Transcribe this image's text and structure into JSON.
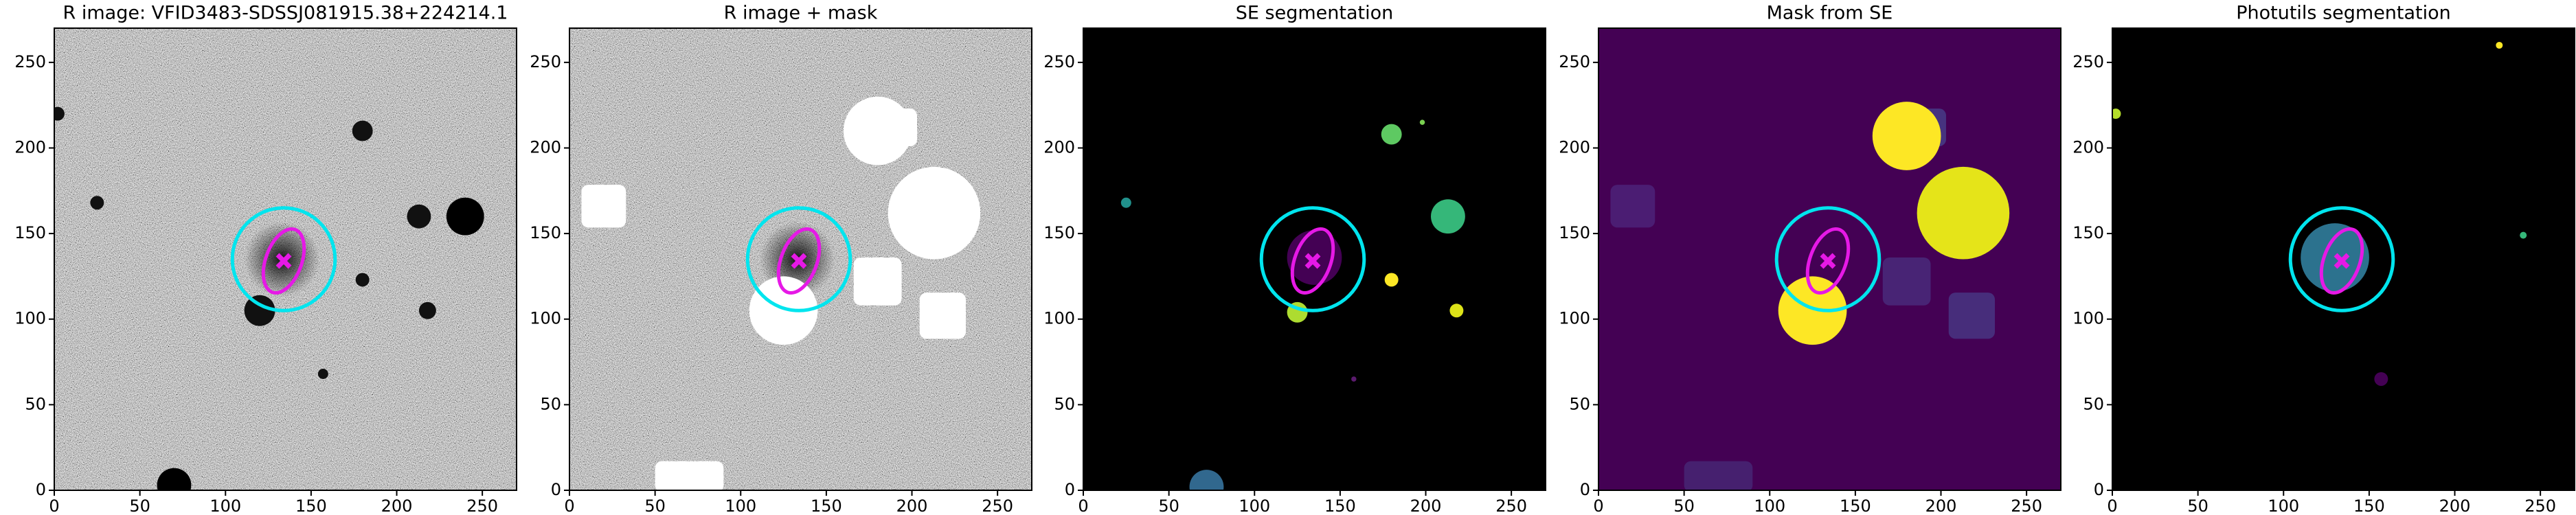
{
  "chart_data": [
    {
      "type": "image",
      "title": "R image: VFID3483-SDSSJ081915.38+224214.1",
      "background": "noise",
      "xlim": [
        0,
        270
      ],
      "ylim": [
        0,
        270
      ],
      "xticks": [
        0,
        50,
        100,
        150,
        200,
        250
      ],
      "yticks": [
        0,
        50,
        100,
        150,
        200,
        250
      ],
      "aperture": {
        "x": 134,
        "y": 135,
        "radius": 30,
        "color": "#00e5ee"
      },
      "ellipse": {
        "x": 134,
        "y": 134,
        "width": 21,
        "height": 39,
        "angle": 20,
        "color": "#e619e6"
      }
    },
    {
      "type": "image",
      "title": "R image + mask",
      "background": "noise-mask",
      "xlim": [
        0,
        270
      ],
      "ylim": [
        0,
        270
      ],
      "xticks": [
        0,
        50,
        100,
        150,
        200,
        250
      ],
      "yticks": [
        0,
        50,
        100,
        150,
        200,
        250
      ],
      "aperture": {
        "x": 134,
        "y": 135,
        "radius": 30,
        "color": "#00e5ee"
      },
      "ellipse": {
        "x": 134,
        "y": 134,
        "width": 21,
        "height": 39,
        "angle": 20,
        "color": "#e619e6"
      }
    },
    {
      "type": "image",
      "title": "SE segmentation",
      "background": "segmentation",
      "xlim": [
        0,
        270
      ],
      "ylim": [
        0,
        270
      ],
      "xticks": [
        0,
        50,
        100,
        150,
        200,
        250
      ],
      "yticks": [
        0,
        50,
        100,
        150,
        200,
        250
      ],
      "aperture": {
        "x": 134,
        "y": 135,
        "radius": 30,
        "color": "#00e5ee"
      },
      "ellipse": {
        "x": 134,
        "y": 134,
        "width": 21,
        "height": 39,
        "angle": 20,
        "color": "#e619e6"
      }
    },
    {
      "type": "image",
      "title": "Mask from SE",
      "background": "mask",
      "xlim": [
        0,
        270
      ],
      "ylim": [
        0,
        270
      ],
      "xticks": [
        0,
        50,
        100,
        150,
        200,
        250
      ],
      "yticks": [
        0,
        50,
        100,
        150,
        200,
        250
      ],
      "aperture": {
        "x": 134,
        "y": 135,
        "radius": 30,
        "color": "#00e5ee"
      },
      "ellipse": {
        "x": 134,
        "y": 134,
        "width": 21,
        "height": 39,
        "angle": 20,
        "color": "#e619e6"
      }
    },
    {
      "type": "image",
      "title": "Photutils segmentation",
      "background": "photutils",
      "xlim": [
        0,
        270
      ],
      "ylim": [
        0,
        270
      ],
      "xticks": [
        0,
        50,
        100,
        150,
        200,
        250
      ],
      "yticks": [
        0,
        50,
        100,
        150,
        200,
        250
      ],
      "aperture": {
        "x": 134,
        "y": 135,
        "radius": 30,
        "color": "#00e5ee"
      },
      "ellipse": {
        "x": 134,
        "y": 134,
        "width": 21,
        "height": 39,
        "angle": 20,
        "color": "#e619e6"
      }
    }
  ]
}
